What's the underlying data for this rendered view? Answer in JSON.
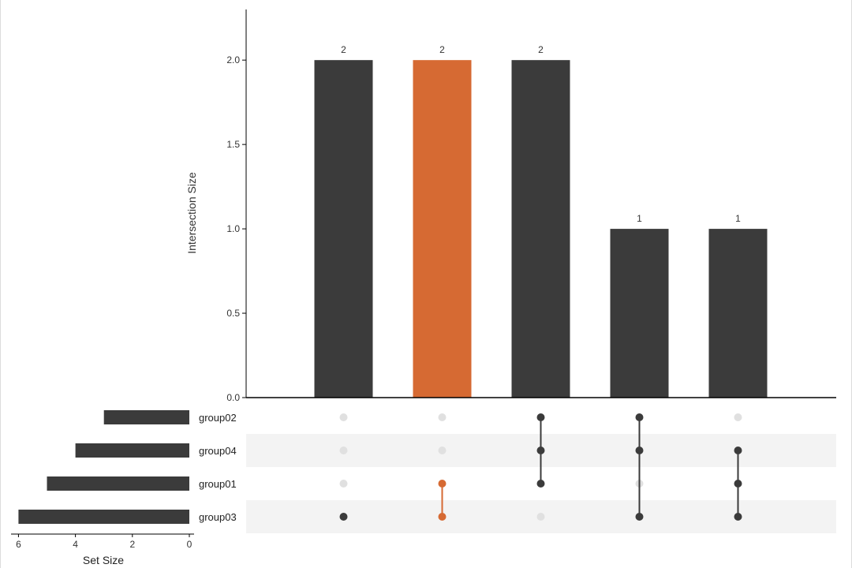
{
  "chart_data": {
    "type": "bar",
    "ylabel": "Intersection Size",
    "ylim": [
      0,
      2.3
    ],
    "yticks": [
      0.0,
      0.5,
      1.0,
      1.5,
      2.0
    ],
    "ytick_labels": [
      "0.0",
      "0.5",
      "1.0",
      "1.5",
      "2.0"
    ],
    "intersections": [
      {
        "value": 2,
        "label": "2",
        "members": [
          "group03"
        ],
        "highlight": false
      },
      {
        "value": 2,
        "label": "2",
        "members": [
          "group01",
          "group03"
        ],
        "highlight": true
      },
      {
        "value": 2,
        "label": "2",
        "members": [
          "group02",
          "group04",
          "group01"
        ],
        "highlight": false
      },
      {
        "value": 1,
        "label": "1",
        "members": [
          "group02",
          "group04",
          "group03"
        ],
        "highlight": false
      },
      {
        "value": 1,
        "label": "1",
        "members": [
          "group04",
          "group01",
          "group03"
        ],
        "highlight": false
      }
    ],
    "sets": [
      {
        "name": "group02",
        "size": 3
      },
      {
        "name": "group04",
        "size": 4
      },
      {
        "name": "group01",
        "size": 5
      },
      {
        "name": "group03",
        "size": 6
      }
    ],
    "set_size_label": "Set Size",
    "set_size_ticks": [
      6,
      4,
      2,
      0
    ],
    "set_size_tick_labels": [
      "6",
      "4",
      "2",
      "0"
    ],
    "set_size_max": 6.15,
    "colors": {
      "bar": "#3b3b3b",
      "highlight": "#d66a33",
      "dot_inactive": "#e0e0e0",
      "stripe": "#f3f3f3",
      "axis": "#000000",
      "text": "#333333"
    }
  }
}
